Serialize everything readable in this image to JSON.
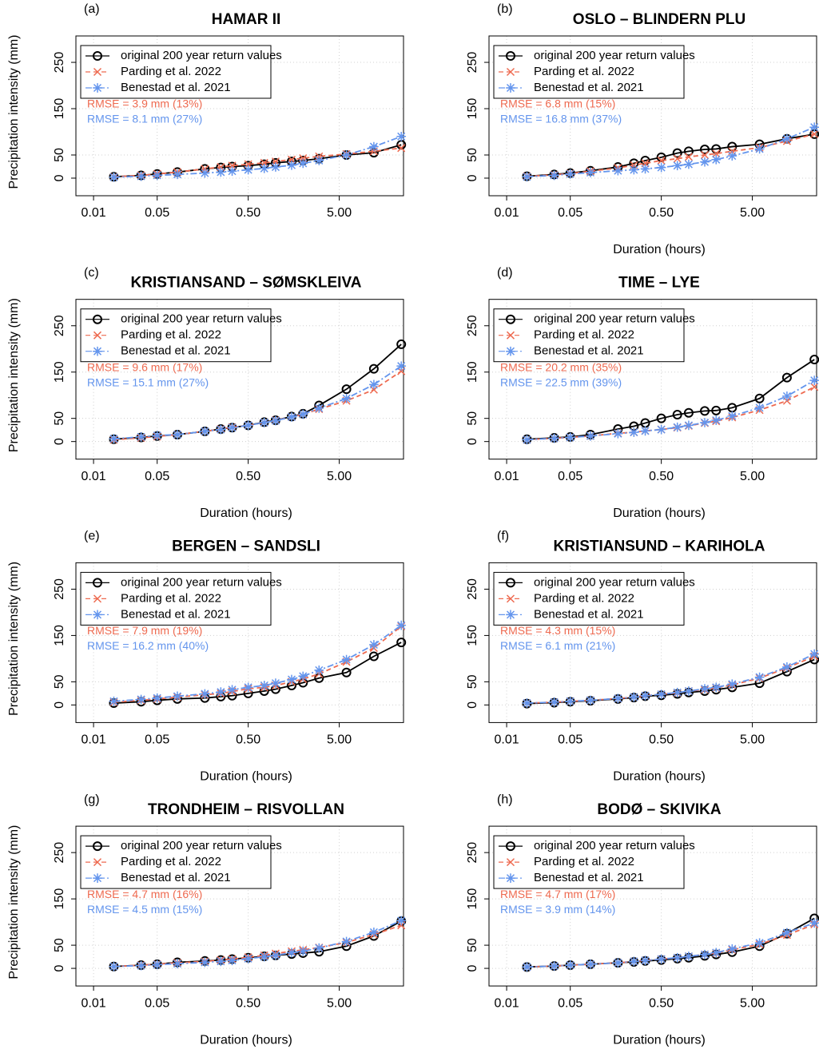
{
  "chart_data": [
    {
      "type": "line",
      "panel_label": "(a)",
      "title": "HAMAR II",
      "ylabel": "Precipitation intensity (mm)",
      "xscale": "log",
      "grid": true,
      "legend": "topleft",
      "x": [
        0.0167,
        0.0333,
        0.05,
        0.0833,
        0.167,
        0.25,
        0.333,
        0.5,
        0.75,
        1,
        1.5,
        2,
        3,
        6,
        12,
        24
      ],
      "xlim": [
        0.0064,
        25.4
      ],
      "ylim": [
        -38,
        307
      ],
      "xticks": [
        0.01,
        0.05,
        {
          "value": 0.5,
          "label": "0.50"
        },
        {
          "value": 5,
          "label": "5.00"
        }
      ],
      "yticks": [
        0,
        50,
        150,
        250
      ],
      "series": [
        {
          "name": "original 200 year return values",
          "color": "#000000",
          "marker": "circle",
          "linestyle": "solid",
          "values": [
            3,
            6,
            9,
            13,
            20,
            23,
            25,
            27,
            30,
            33,
            36,
            38,
            42,
            50,
            55,
            72
          ]
        },
        {
          "name": "Parding et al. 2022",
          "color": "#ee6a50",
          "marker": "x",
          "linestyle": "dashed",
          "values": [
            3,
            6,
            9,
            13,
            20,
            24,
            27,
            30,
            33,
            36,
            40,
            43,
            47,
            52,
            58,
            65
          ]
        },
        {
          "name": "Benestad et al. 2021",
          "color": "#6495ed",
          "marker": "asterisk",
          "linestyle": "dashdot",
          "values": [
            2,
            4,
            6,
            8,
            11,
            13,
            15,
            18,
            21,
            24,
            28,
            32,
            38,
            50,
            68,
            90
          ]
        }
      ],
      "annotations": [
        {
          "text": "RMSE = 3.9 mm (13%)",
          "color": "#ee6a50"
        },
        {
          "text": "RMSE = 8.1 mm (27%)",
          "color": "#6495ed"
        }
      ]
    },
    {
      "type": "line",
      "panel_label": "(b)",
      "title": "OSLO – BLINDERN PLU",
      "xlabel": "Duration (hours)",
      "xscale": "log",
      "grid": true,
      "legend": "topleft",
      "x": [
        0.0167,
        0.0333,
        0.05,
        0.0833,
        0.167,
        0.25,
        0.333,
        0.5,
        0.75,
        1,
        1.5,
        2,
        3,
        6,
        12,
        24
      ],
      "xlim": [
        0.0064,
        25.4
      ],
      "ylim": [
        -38,
        307
      ],
      "xticks": [
        0.01,
        0.05,
        {
          "value": 0.5,
          "label": "0.50"
        },
        {
          "value": 5,
          "label": "5.00"
        }
      ],
      "yticks": [
        0,
        50,
        150,
        250
      ],
      "series": [
        {
          "name": "original 200 year return values",
          "color": "#000000",
          "marker": "circle",
          "linestyle": "solid",
          "values": [
            4,
            8,
            11,
            16,
            24,
            32,
            38,
            45,
            54,
            58,
            62,
            63,
            68,
            73,
            85,
            95
          ]
        },
        {
          "name": "Parding et al. 2022",
          "color": "#ee6a50",
          "marker": "x",
          "linestyle": "dashed",
          "values": [
            4,
            7,
            10,
            15,
            22,
            28,
            32,
            38,
            42,
            46,
            50,
            53,
            58,
            66,
            80,
            95
          ]
        },
        {
          "name": "Benestad et al. 2021",
          "color": "#6495ed",
          "marker": "asterisk",
          "linestyle": "dashdot",
          "values": [
            3,
            6,
            9,
            12,
            16,
            18,
            20,
            23,
            27,
            30,
            35,
            40,
            48,
            63,
            85,
            110
          ]
        }
      ],
      "annotations": [
        {
          "text": "RMSE = 6.8 mm (15%)",
          "color": "#ee6a50"
        },
        {
          "text": "RMSE = 16.8 mm (37%)",
          "color": "#6495ed"
        }
      ]
    },
    {
      "type": "line",
      "panel_label": "(c)",
      "title": "KRISTIANSAND – SØMSKLEIVA",
      "xlabel": "Duration (hours)",
      "ylabel": "Precipitation intensity (mm)",
      "xscale": "log",
      "grid": true,
      "legend": "topleft",
      "x": [
        0.0167,
        0.0333,
        0.05,
        0.0833,
        0.167,
        0.25,
        0.333,
        0.5,
        0.75,
        1,
        1.5,
        2,
        3,
        6,
        12,
        24
      ],
      "xlim": [
        0.0064,
        25.4
      ],
      "ylim": [
        -38,
        307
      ],
      "xticks": [
        0.01,
        0.05,
        {
          "value": 0.5,
          "label": "0.50"
        },
        {
          "value": 5,
          "label": "5.00"
        }
      ],
      "yticks": [
        0,
        50,
        150,
        250
      ],
      "series": [
        {
          "name": "original 200 year return values",
          "color": "#000000",
          "marker": "circle",
          "linestyle": "solid",
          "values": [
            5,
            9,
            12,
            15,
            22,
            27,
            30,
            35,
            42,
            46,
            54,
            60,
            78,
            113,
            157,
            210
          ]
        },
        {
          "name": "Parding et al. 2022",
          "color": "#ee6a50",
          "marker": "x",
          "linestyle": "dashed",
          "values": [
            4,
            8,
            11,
            15,
            22,
            27,
            31,
            35,
            41,
            46,
            53,
            59,
            70,
            88,
            112,
            152
          ]
        },
        {
          "name": "Benestad et al. 2021",
          "color": "#6495ed",
          "marker": "asterisk",
          "linestyle": "dashdot",
          "values": [
            6,
            10,
            13,
            15,
            22,
            26,
            30,
            35,
            41,
            45,
            53,
            59,
            72,
            93,
            123,
            163
          ]
        }
      ],
      "annotations": [
        {
          "text": "RMSE = 9.6 mm (17%)",
          "color": "#ee6a50"
        },
        {
          "text": "RMSE = 15.1 mm (27%)",
          "color": "#6495ed"
        }
      ]
    },
    {
      "type": "line",
      "panel_label": "(d)",
      "title": "TIME – LYE",
      "xlabel": "Duration (hours)",
      "xscale": "log",
      "grid": true,
      "legend": "topleft",
      "x": [
        0.0167,
        0.0333,
        0.05,
        0.0833,
        0.167,
        0.25,
        0.333,
        0.5,
        0.75,
        1,
        1.5,
        2,
        3,
        6,
        12,
        24
      ],
      "xlim": [
        0.0064,
        25.4
      ],
      "ylim": [
        -38,
        307
      ],
      "xticks": [
        0.01,
        0.05,
        {
          "value": 0.5,
          "label": "0.50"
        },
        {
          "value": 5,
          "label": "5.00"
        }
      ],
      "yticks": [
        0,
        50,
        150,
        250
      ],
      "series": [
        {
          "name": "original 200 year return values",
          "color": "#000000",
          "marker": "circle",
          "linestyle": "solid",
          "values": [
            5,
            8,
            10,
            15,
            27,
            33,
            40,
            50,
            58,
            62,
            66,
            67,
            73,
            93,
            138,
            177
          ]
        },
        {
          "name": "Parding et al. 2022",
          "color": "#ee6a50",
          "marker": "x",
          "linestyle": "dashed",
          "values": [
            4,
            7,
            9,
            12,
            18,
            20,
            23,
            26,
            30,
            34,
            40,
            44,
            52,
            68,
            88,
            118
          ]
        },
        {
          "name": "Benestad et al. 2021",
          "color": "#6495ed",
          "marker": "asterisk",
          "linestyle": "dashdot",
          "values": [
            4,
            7,
            9,
            12,
            17,
            20,
            23,
            26,
            31,
            35,
            41,
            46,
            55,
            73,
            98,
            132
          ]
        }
      ],
      "annotations": [
        {
          "text": "RMSE = 20.2 mm (35%)",
          "color": "#ee6a50"
        },
        {
          "text": "RMSE = 22.5 mm (39%)",
          "color": "#6495ed"
        }
      ]
    },
    {
      "type": "line",
      "panel_label": "(e)",
      "title": "BERGEN – SANDSLI",
      "xlabel": "Duration (hours)",
      "ylabel": "Precipitation intensity (mm)",
      "xscale": "log",
      "grid": true,
      "legend": "topleft",
      "x": [
        0.0167,
        0.0333,
        0.05,
        0.0833,
        0.167,
        0.25,
        0.333,
        0.5,
        0.75,
        1,
        1.5,
        2,
        3,
        6,
        12,
        24
      ],
      "xlim": [
        0.0064,
        25.4
      ],
      "ylim": [
        -38,
        307
      ],
      "xticks": [
        0.01,
        0.05,
        {
          "value": 0.5,
          "label": "0.50"
        },
        {
          "value": 5,
          "label": "5.00"
        }
      ],
      "yticks": [
        0,
        50,
        150,
        250
      ],
      "series": [
        {
          "name": "original 200 year return values",
          "color": "#000000",
          "marker": "circle",
          "linestyle": "solid",
          "values": [
            4,
            7,
            10,
            13,
            15,
            18,
            20,
            25,
            30,
            34,
            42,
            48,
            58,
            70,
            105,
            135
          ]
        },
        {
          "name": "Parding et al. 2022",
          "color": "#ee6a50",
          "marker": "x",
          "linestyle": "dashed",
          "values": [
            6,
            10,
            13,
            17,
            22,
            25,
            29,
            35,
            38,
            42,
            50,
            56,
            67,
            93,
            123,
            170
          ]
        },
        {
          "name": "Benestad et al. 2021",
          "color": "#6495ed",
          "marker": "asterisk",
          "linestyle": "dashdot",
          "values": [
            8,
            12,
            15,
            19,
            24,
            28,
            33,
            38,
            42,
            47,
            55,
            62,
            75,
            98,
            130,
            172
          ]
        }
      ],
      "annotations": [
        {
          "text": "RMSE = 7.9 mm (19%)",
          "color": "#ee6a50"
        },
        {
          "text": "RMSE = 16.2 mm (40%)",
          "color": "#6495ed"
        }
      ]
    },
    {
      "type": "line",
      "panel_label": "(f)",
      "title": "KRISTIANSUND – KARIHOLA",
      "xlabel": "Duration (hours)",
      "xscale": "log",
      "grid": true,
      "legend": "topleft",
      "x": [
        0.0167,
        0.0333,
        0.05,
        0.0833,
        0.167,
        0.25,
        0.333,
        0.5,
        0.75,
        1,
        1.5,
        2,
        3,
        6,
        12,
        24
      ],
      "xlim": [
        0.0064,
        25.4
      ],
      "ylim": [
        -38,
        307
      ],
      "xticks": [
        0.01,
        0.05,
        {
          "value": 0.5,
          "label": "0.50"
        },
        {
          "value": 5,
          "label": "5.00"
        }
      ],
      "yticks": [
        0,
        50,
        150,
        250
      ],
      "series": [
        {
          "name": "original 200 year return values",
          "color": "#000000",
          "marker": "circle",
          "linestyle": "solid",
          "values": [
            3,
            5,
            7,
            9,
            13,
            16,
            19,
            21,
            24,
            27,
            30,
            33,
            38,
            47,
            72,
            98
          ]
        },
        {
          "name": "Parding et al. 2022",
          "color": "#ee6a50",
          "marker": "x",
          "linestyle": "dashed",
          "values": [
            4,
            6,
            8,
            10,
            14,
            17,
            20,
            23,
            26,
            30,
            33,
            37,
            43,
            58,
            80,
            105
          ]
        },
        {
          "name": "Benestad et al. 2021",
          "color": "#6495ed",
          "marker": "asterisk",
          "linestyle": "dashdot",
          "values": [
            4,
            6,
            8,
            10,
            14,
            17,
            20,
            23,
            27,
            30,
            35,
            38,
            45,
            60,
            82,
            110
          ]
        }
      ],
      "annotations": [
        {
          "text": "RMSE = 4.3 mm (15%)",
          "color": "#ee6a50"
        },
        {
          "text": "RMSE = 6.1 mm (21%)",
          "color": "#6495ed"
        }
      ]
    },
    {
      "type": "line",
      "panel_label": "(g)",
      "title": "TRONDHEIM – RISVOLLAN",
      "xlabel": "Duration (hours)",
      "ylabel": "Precipitation intensity (mm)",
      "xscale": "log",
      "grid": true,
      "legend": "topleft",
      "x": [
        0.0167,
        0.0333,
        0.05,
        0.0833,
        0.167,
        0.25,
        0.333,
        0.5,
        0.75,
        1,
        1.5,
        2,
        3,
        6,
        12,
        24
      ],
      "xlim": [
        0.0064,
        25.4
      ],
      "ylim": [
        -38,
        307
      ],
      "xticks": [
        0.01,
        0.05,
        {
          "value": 0.5,
          "label": "0.50"
        },
        {
          "value": 5,
          "label": "5.00"
        }
      ],
      "yticks": [
        0,
        50,
        150,
        250
      ],
      "series": [
        {
          "name": "original 200 year return values",
          "color": "#000000",
          "marker": "circle",
          "linestyle": "solid",
          "values": [
            4,
            7,
            9,
            13,
            16,
            18,
            20,
            23,
            26,
            28,
            31,
            33,
            36,
            48,
            70,
            102
          ]
        },
        {
          "name": "Parding et al. 2022",
          "color": "#ee6a50",
          "marker": "x",
          "linestyle": "dashed",
          "values": [
            4,
            7,
            9,
            12,
            15,
            18,
            20,
            24,
            28,
            32,
            37,
            40,
            45,
            56,
            73,
            93
          ]
        },
        {
          "name": "Benestad et al. 2021",
          "color": "#6495ed",
          "marker": "asterisk",
          "linestyle": "dashdot",
          "values": [
            4,
            6,
            8,
            10,
            13,
            15,
            17,
            21,
            25,
            28,
            34,
            37,
            44,
            58,
            78,
            103
          ]
        }
      ],
      "annotations": [
        {
          "text": "RMSE = 4.7 mm (16%)",
          "color": "#ee6a50"
        },
        {
          "text": "RMSE = 4.5 mm (15%)",
          "color": "#6495ed"
        }
      ]
    },
    {
      "type": "line",
      "panel_label": "(h)",
      "title": "BODØ – SKIVIKA",
      "xlabel": "Duration (hours)",
      "xscale": "log",
      "grid": true,
      "legend": "topleft",
      "x": [
        0.0167,
        0.0333,
        0.05,
        0.0833,
        0.167,
        0.25,
        0.333,
        0.5,
        0.75,
        1,
        1.5,
        2,
        3,
        6,
        12,
        24
      ],
      "xlim": [
        0.0064,
        25.4
      ],
      "ylim": [
        -38,
        307
      ],
      "xticks": [
        0.01,
        0.05,
        {
          "value": 0.5,
          "label": "0.50"
        },
        {
          "value": 5,
          "label": "5.00"
        }
      ],
      "yticks": [
        0,
        50,
        150,
        250
      ],
      "series": [
        {
          "name": "original 200 year return values",
          "color": "#000000",
          "marker": "circle",
          "linestyle": "solid",
          "values": [
            3,
            5,
            7,
            9,
            12,
            14,
            16,
            18,
            21,
            23,
            27,
            30,
            35,
            48,
            75,
            108
          ]
        },
        {
          "name": "Parding et al. 2022",
          "color": "#ee6a50",
          "marker": "x",
          "linestyle": "dashed",
          "values": [
            3,
            5,
            7,
            9,
            12,
            15,
            17,
            20,
            23,
            26,
            30,
            33,
            40,
            52,
            72,
            95
          ]
        },
        {
          "name": "Benestad et al. 2021",
          "color": "#6495ed",
          "marker": "asterisk",
          "linestyle": "dashdot",
          "values": [
            3,
            5,
            7,
            9,
            12,
            15,
            17,
            20,
            23,
            26,
            30,
            34,
            42,
            55,
            77,
            98
          ]
        }
      ],
      "annotations": [
        {
          "text": "RMSE = 4.7 mm (17%)",
          "color": "#ee6a50"
        },
        {
          "text": "RMSE = 3.9 mm (14%)",
          "color": "#6495ed"
        }
      ]
    }
  ]
}
